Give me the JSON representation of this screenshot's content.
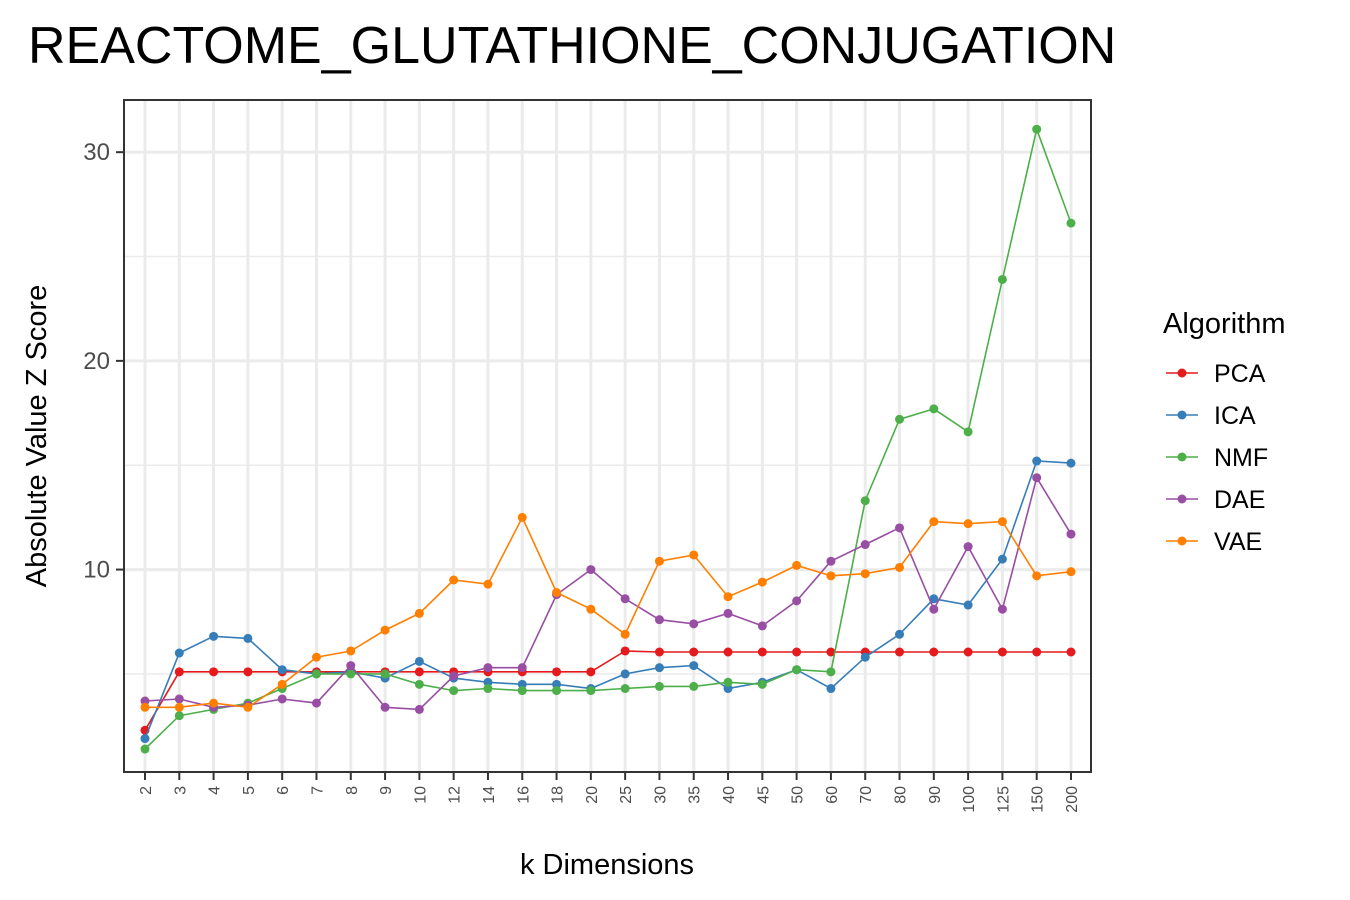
{
  "chart_data": {
    "type": "line",
    "title": "REACTOME_GLUTATHIONE_CONJUGATION",
    "xlabel": "k Dimensions",
    "ylabel": "Absolute Value Z Score",
    "categories": [
      "2",
      "3",
      "4",
      "5",
      "6",
      "7",
      "8",
      "9",
      "10",
      "12",
      "14",
      "16",
      "18",
      "20",
      "25",
      "30",
      "35",
      "40",
      "45",
      "50",
      "60",
      "70",
      "80",
      "90",
      "100",
      "125",
      "150",
      "200"
    ],
    "ylim": [
      0.3,
      32.5
    ],
    "yticks": [
      "10",
      "20",
      "30"
    ],
    "legend_title": "Algorithm",
    "legend_position": "right",
    "grid": true,
    "series": [
      {
        "name": "PCA",
        "color": "#e41a1c",
        "values": [
          2.3,
          5.1,
          5.1,
          5.1,
          5.1,
          5.1,
          5.1,
          5.1,
          5.1,
          5.1,
          5.1,
          5.1,
          5.1,
          5.1,
          6.1,
          6.05,
          6.05,
          6.05,
          6.05,
          6.05,
          6.05,
          6.05,
          6.05,
          6.05,
          6.05,
          6.05,
          6.05,
          6.05
        ]
      },
      {
        "name": "ICA",
        "color": "#377eb8",
        "values": [
          1.9,
          6.0,
          6.8,
          6.7,
          5.2,
          5.0,
          5.1,
          4.8,
          5.6,
          4.8,
          4.6,
          4.5,
          4.5,
          4.3,
          5.0,
          5.3,
          5.4,
          4.3,
          4.6,
          5.2,
          4.3,
          5.8,
          6.9,
          8.6,
          8.3,
          10.5,
          15.2,
          15.1
        ]
      },
      {
        "name": "NMF",
        "color": "#4daf4a",
        "values": [
          1.4,
          3.0,
          3.3,
          3.6,
          4.3,
          5.0,
          5.0,
          5.0,
          4.5,
          4.2,
          4.3,
          4.2,
          4.2,
          4.2,
          4.3,
          4.4,
          4.4,
          4.6,
          4.5,
          5.2,
          5.1,
          13.3,
          17.2,
          17.7,
          16.6,
          23.9,
          31.1,
          26.6
        ]
      },
      {
        "name": "DAE",
        "color": "#984ea3",
        "values": [
          3.7,
          3.8,
          3.4,
          3.5,
          3.8,
          3.6,
          5.4,
          3.4,
          3.3,
          4.9,
          5.3,
          5.3,
          8.8,
          10.0,
          8.6,
          7.6,
          7.4,
          7.9,
          7.3,
          8.5,
          10.4,
          11.2,
          12.0,
          8.1,
          11.1,
          8.1,
          14.4,
          11.7
        ]
      },
      {
        "name": "VAE",
        "color": "#ff7f00",
        "values": [
          3.4,
          3.4,
          3.6,
          3.4,
          4.5,
          5.8,
          6.1,
          7.1,
          7.9,
          9.5,
          9.3,
          12.5,
          8.9,
          8.1,
          6.9,
          10.4,
          10.7,
          8.7,
          9.4,
          10.2,
          9.7,
          9.8,
          10.1,
          12.3,
          12.2,
          12.3,
          9.7,
          9.9
        ]
      }
    ]
  }
}
